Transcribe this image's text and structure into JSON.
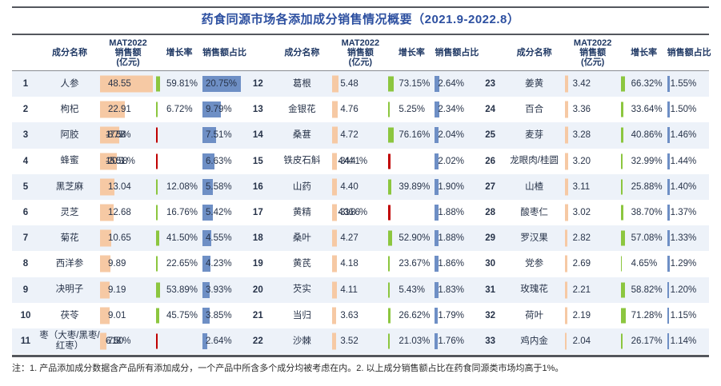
{
  "title": "药食同源市场各添加成分销售情况概要（2021.9-2022.8）",
  "note": "注：1. 产品添加成分数据含产品所有添加成分，一个产品中所含多个成分均被考虑在内。2. 以上成分销售额占比在药食同源类市场均高于1%。",
  "columns": {
    "name": "成分名称",
    "sales_line1": "MAT2022",
    "sales_line2": "销售额",
    "sales_line3": "(亿元)",
    "growth": "增长率",
    "share": "销售额占比"
  },
  "colors": {
    "title_blue": "#2c4fa0",
    "header_text": "#1f3864",
    "sales_bar": "#f6c9a4",
    "growth_positive": "#8cc63f",
    "growth_negative": "#c00000",
    "share_bar": "#6e8fc5",
    "row_stripe": "#edf2f9",
    "rule": "#54575d"
  },
  "chart_data": {
    "type": "table",
    "title": "药食同源市场各添加成分销售情况概要（2021.9-2022.8）",
    "columns": [
      "排名",
      "成分名称",
      "MAT2022销售额(亿元)",
      "增长率",
      "销售额占比"
    ],
    "scales": {
      "sales_max": 48.55,
      "growth_max": 76.16,
      "share_max": 20.75
    },
    "groups": [
      [
        {
          "rank": 1,
          "name": "人参",
          "sales": 48.55,
          "growth": 59.81,
          "share": 20.75,
          "overlap": false
        },
        {
          "rank": 2,
          "name": "枸杞",
          "sales": 22.91,
          "growth": 6.72,
          "share": 9.79,
          "overlap": false
        },
        {
          "rank": 3,
          "name": "阿胶",
          "sales": 17.58,
          "growth": -8.75,
          "share": 7.51,
          "overlap": true
        },
        {
          "rank": 4,
          "name": "蜂蜜",
          "sales": 15.51,
          "growth": -20.58,
          "share": 6.63,
          "overlap": true
        },
        {
          "rank": 5,
          "name": "黑芝麻",
          "sales": 13.04,
          "growth": 12.08,
          "share": 5.58,
          "overlap": false
        },
        {
          "rank": 6,
          "name": "灵芝",
          "sales": 12.68,
          "growth": 16.76,
          "share": 5.42,
          "overlap": false
        },
        {
          "rank": 7,
          "name": "菊花",
          "sales": 10.65,
          "growth": 41.5,
          "share": 4.55,
          "overlap": false
        },
        {
          "rank": 8,
          "name": "西洋参",
          "sales": 9.89,
          "growth": 22.65,
          "share": 4.23,
          "overlap": false
        },
        {
          "rank": 9,
          "name": "决明子",
          "sales": 9.19,
          "growth": 53.89,
          "share": 3.93,
          "overlap": false
        },
        {
          "rank": 10,
          "name": "茯苓",
          "sales": 9.01,
          "growth": 45.75,
          "share": 3.85,
          "overlap": false
        },
        {
          "rank": 11,
          "name": "枣（大枣/黑枣/红枣）",
          "sales": 6.18,
          "growth": -7.5,
          "share": 2.64,
          "overlap": true
        }
      ],
      [
        {
          "rank": 12,
          "name": "葛根",
          "sales": 5.48,
          "growth": 73.15,
          "share": 2.64,
          "overlap": false
        },
        {
          "rank": 13,
          "name": "金银花",
          "sales": 4.76,
          "growth": 5.25,
          "share": 2.34,
          "overlap": false
        },
        {
          "rank": 14,
          "name": "桑葚",
          "sales": 4.72,
          "growth": 76.16,
          "share": 2.04,
          "overlap": false
        },
        {
          "rank": 15,
          "name": "铁皮石斛",
          "sales": 4.44,
          "growth": -34.41,
          "share": 2.02,
          "overlap": true
        },
        {
          "rank": 16,
          "name": "山药",
          "sales": 4.4,
          "growth": 39.89,
          "share": 1.9,
          "overlap": false
        },
        {
          "rank": 17,
          "name": "黄精",
          "sales": 4.36,
          "growth": -31.86,
          "share": 1.88,
          "overlap": true
        },
        {
          "rank": 18,
          "name": "桑叶",
          "sales": 4.27,
          "growth": 52.9,
          "share": 1.88,
          "overlap": false
        },
        {
          "rank": 19,
          "name": "黄芪",
          "sales": 4.18,
          "growth": 23.67,
          "share": 1.86,
          "overlap": false
        },
        {
          "rank": 20,
          "name": "芡实",
          "sales": 4.11,
          "growth": 5.43,
          "share": 1.83,
          "overlap": false
        },
        {
          "rank": 21,
          "name": "当归",
          "sales": 3.63,
          "growth": 26.62,
          "share": 1.79,
          "overlap": false
        },
        {
          "rank": 22,
          "name": "沙棘",
          "sales": 3.52,
          "growth": 21.03,
          "share": 1.76,
          "overlap": false
        }
      ],
      [
        {
          "rank": 23,
          "name": "姜黄",
          "sales": 3.42,
          "growth": 66.32,
          "share": 1.55,
          "overlap": false
        },
        {
          "rank": 24,
          "name": "百合",
          "sales": 3.36,
          "growth": 33.64,
          "share": 1.5,
          "overlap": false
        },
        {
          "rank": 25,
          "name": "麦芽",
          "sales": 3.28,
          "growth": 40.86,
          "share": 1.46,
          "overlap": false
        },
        {
          "rank": 26,
          "name": "龙眼肉/桂圆",
          "sales": 3.2,
          "growth": 32.99,
          "share": 1.44,
          "overlap": false
        },
        {
          "rank": 27,
          "name": "山楂",
          "sales": 3.11,
          "growth": 25.88,
          "share": 1.4,
          "overlap": false
        },
        {
          "rank": 28,
          "name": "酸枣仁",
          "sales": 3.02,
          "growth": 38.7,
          "share": 1.37,
          "overlap": false
        },
        {
          "rank": 29,
          "name": "罗汉果",
          "sales": 2.82,
          "growth": 57.08,
          "share": 1.33,
          "overlap": false
        },
        {
          "rank": 30,
          "name": "党参",
          "sales": 2.69,
          "growth": 4.65,
          "share": 1.29,
          "overlap": false
        },
        {
          "rank": 31,
          "name": "玫瑰花",
          "sales": 2.21,
          "growth": 58.82,
          "share": 1.2,
          "overlap": false
        },
        {
          "rank": 32,
          "name": "荷叶",
          "sales": 2.19,
          "growth": 71.28,
          "share": 1.15,
          "overlap": false
        },
        {
          "rank": 33,
          "name": "鸡内金",
          "sales": 2.04,
          "growth": 26.17,
          "share": 1.14,
          "overlap": false
        }
      ]
    ]
  }
}
